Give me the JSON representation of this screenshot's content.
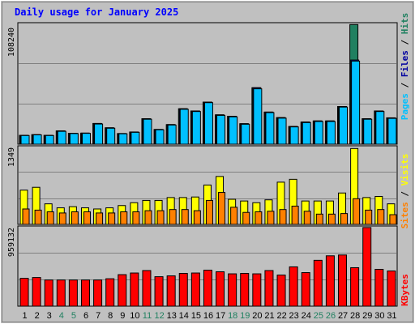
{
  "colors": {
    "frame": "#c0c0c0",
    "panel": "#c0c0c0",
    "grid": "#808080",
    "title": "#0000ff",
    "pages": "#00c0ff",
    "files": "#0000a0",
    "hits": "#208060",
    "visits": "#ffff00",
    "sites": "#ff8000",
    "kbytes": "#ff0000",
    "weekday": "#000000",
    "weekend": "#208060"
  },
  "chart_data": [
    {
      "type": "bar",
      "title": "Daily usage for January 2025",
      "panel": "top",
      "ymax_label": "108240",
      "ymax": 108240,
      "categories": [
        "1",
        "2",
        "3",
        "4",
        "5",
        "6",
        "7",
        "8",
        "9",
        "10",
        "11",
        "12",
        "13",
        "14",
        "15",
        "16",
        "17",
        "18",
        "19",
        "20",
        "21",
        "22",
        "23",
        "24",
        "25",
        "26",
        "27",
        "28",
        "29",
        "30",
        "31"
      ],
      "weekend_days": [
        "4",
        "5",
        "11",
        "12",
        "18",
        "19",
        "25",
        "26"
      ],
      "legend": [
        "Pages",
        "Files",
        "Hits"
      ],
      "series": [
        {
          "name": "Hits",
          "values": [
            8000,
            8600,
            8000,
            12000,
            9800,
            10000,
            18700,
            14800,
            9600,
            11000,
            23000,
            13300,
            17700,
            32000,
            30000,
            38000,
            26500,
            25200,
            18500,
            51000,
            29000,
            24000,
            16000,
            20000,
            21000,
            21000,
            34000,
            108000,
            23000,
            30000,
            23800
          ]
        },
        {
          "name": "Files",
          "values": [
            8000,
            8600,
            8000,
            12000,
            9800,
            10000,
            18700,
            14800,
            9600,
            11000,
            23000,
            13300,
            17700,
            32000,
            30000,
            38000,
            26500,
            25200,
            18500,
            51000,
            29000,
            24000,
            16000,
            20000,
            21000,
            21000,
            34000,
            76000,
            23000,
            30000,
            23800
          ]
        },
        {
          "name": "Pages",
          "values": [
            7800,
            8400,
            7800,
            11600,
            9600,
            9800,
            18200,
            14400,
            9400,
            10700,
            22500,
            13000,
            17300,
            31500,
            29500,
            37500,
            26000,
            24700,
            18000,
            50000,
            28500,
            23500,
            15600,
            19500,
            20500,
            20500,
            33500,
            75000,
            22500,
            29500,
            23300
          ]
        }
      ]
    },
    {
      "type": "bar",
      "panel": "middle",
      "ymax_label": "1349",
      "ymax": 1349,
      "legend": [
        "Sites",
        "Visits"
      ],
      "series": [
        {
          "name": "Visits",
          "values": [
            600,
            650,
            360,
            290,
            310,
            290,
            270,
            290,
            330,
            380,
            420,
            420,
            470,
            470,
            480,
            690,
            840,
            440,
            410,
            380,
            430,
            740,
            790,
            410,
            410,
            410,
            550,
            1330,
            470,
            490,
            360
          ]
        },
        {
          "name": "Sites",
          "values": [
            270,
            250,
            220,
            200,
            220,
            220,
            200,
            200,
            220,
            220,
            240,
            240,
            260,
            260,
            240,
            420,
            560,
            300,
            210,
            220,
            230,
            260,
            320,
            230,
            180,
            180,
            190,
            450,
            250,
            260,
            170
          ]
        }
      ]
    },
    {
      "type": "bar",
      "panel": "bottom",
      "ymax_label": "959132",
      "ymax": 959132,
      "legend": [
        "KBytes"
      ],
      "series": [
        {
          "name": "KBytes",
          "values": [
            340000,
            350000,
            320000,
            320000,
            320000,
            320000,
            320000,
            335000,
            385000,
            405000,
            435000,
            360000,
            370000,
            400000,
            405000,
            440000,
            420000,
            395000,
            400000,
            395000,
            435000,
            380000,
            480000,
            410000,
            560000,
            615000,
            625000,
            470000,
            960000,
            450000,
            430000
          ]
        }
      ]
    }
  ]
}
